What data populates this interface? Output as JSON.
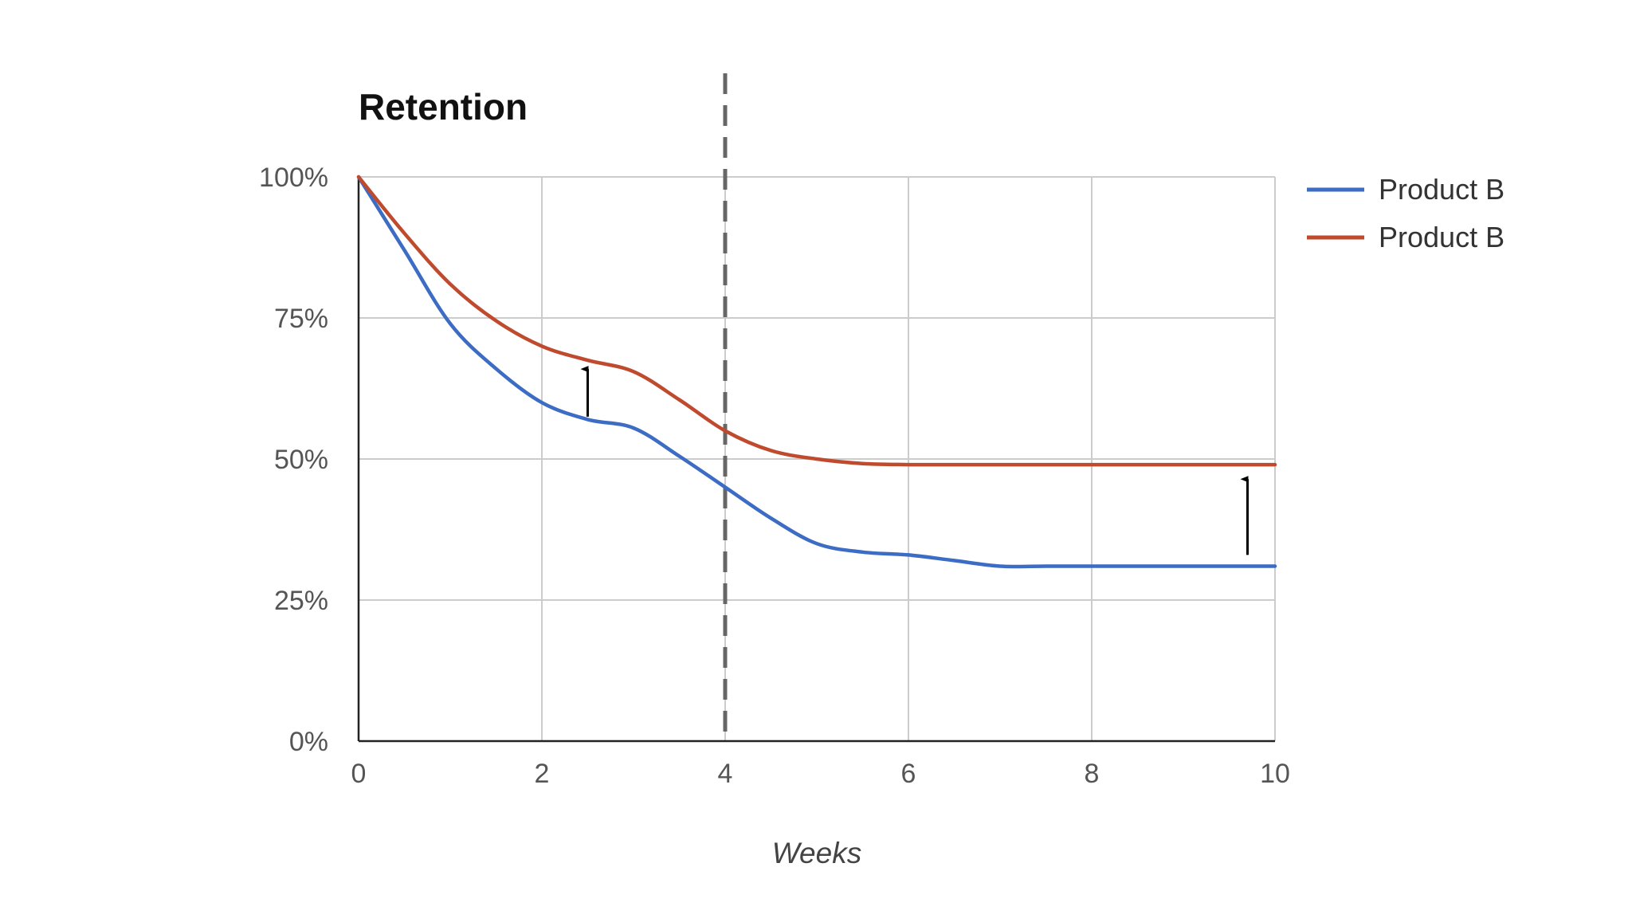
{
  "chart_data": {
    "type": "line",
    "title": "Retention",
    "xlabel": "Weeks",
    "ylabel": "",
    "x_ticks": [
      0,
      2,
      4,
      6,
      8,
      10
    ],
    "y_ticks": [
      0,
      25,
      50,
      75,
      100
    ],
    "y_tick_labels": [
      "0%",
      "25%",
      "50%",
      "75%",
      "100%"
    ],
    "xlim": [
      0,
      10
    ],
    "ylim": [
      0,
      100
    ],
    "grid": true,
    "legend_position": "right",
    "vertical_reference_x": 4,
    "series": [
      {
        "name": "Product B",
        "color": "#3d6cc4",
        "x": [
          0,
          0.5,
          1,
          1.5,
          2,
          2.5,
          3,
          3.5,
          4,
          4.5,
          5,
          5.5,
          6,
          6.5,
          7,
          7.5,
          8,
          8.5,
          9,
          9.5,
          10
        ],
        "y": [
          100,
          87,
          74,
          66,
          60,
          57,
          55.5,
          50.5,
          45,
          39.5,
          35,
          33.5,
          33,
          32,
          31,
          31,
          31,
          31,
          31,
          31,
          31
        ]
      },
      {
        "name": "Product B",
        "color": "#c04a2e",
        "x": [
          0,
          0.5,
          1,
          1.5,
          2,
          2.5,
          3,
          3.5,
          4,
          4.5,
          5,
          5.5,
          6,
          6.5,
          7,
          7.5,
          8,
          8.5,
          9,
          9.5,
          10
        ],
        "y": [
          100,
          90,
          81,
          74.5,
          70,
          67.5,
          65.5,
          60.5,
          55,
          51.5,
          50,
          49.2,
          49,
          49,
          49,
          49,
          49,
          49,
          49,
          49,
          49
        ]
      }
    ],
    "annotations": [
      {
        "type": "arrow",
        "x": 2.5,
        "from_y": 57.5,
        "to_y": 66.5
      },
      {
        "type": "arrow",
        "x": 9.7,
        "from_y": 33,
        "to_y": 47
      }
    ]
  }
}
